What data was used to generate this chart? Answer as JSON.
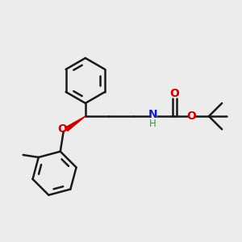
{
  "bg_color": "#ececec",
  "bond_color": "#1a1a1a",
  "bond_width": 1.8,
  "wedge_color": "#cc0000",
  "o_color": "#cc0000",
  "n_color": "#1a1acc",
  "h_color": "#4a8a4a",
  "figsize": [
    3.0,
    3.0
  ],
  "dpi": 100,
  "xlim": [
    0,
    10
  ],
  "ylim": [
    0,
    10
  ]
}
